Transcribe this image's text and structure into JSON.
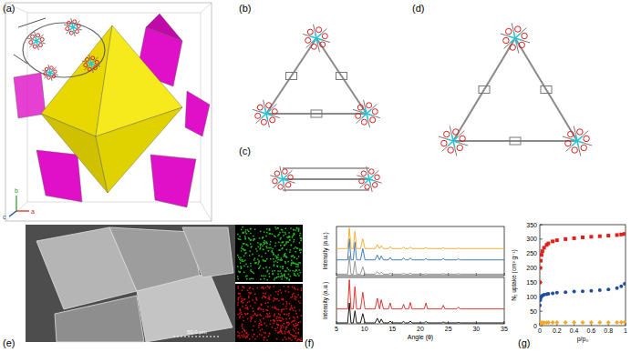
{
  "panel_labels": {
    "a": "(a)",
    "b": "(b)",
    "c": "(c)",
    "d": "(d)",
    "e": "(e)",
    "f": "(f)",
    "g": "(g)"
  },
  "axes_triad": {
    "b": "b",
    "c": "c",
    "a": "a"
  },
  "scale_bar": "50.0 µm",
  "chart_data": [
    {
      "type": "line",
      "ylabel": "Intensity (a.u.)",
      "x": [
        5,
        6.6,
        7.0,
        7.3,
        7.6,
        8.0,
        8.3,
        8.6,
        9.3,
        9.7,
        10.1,
        11.5,
        11.9,
        12.3,
        12.7,
        13.0,
        13.4,
        14.3,
        14.6,
        14.9,
        16.7,
        17.0,
        17.3,
        17.9,
        18.2,
        18.5,
        20.7,
        21.0,
        21.3,
        23.8,
        24.1,
        24.4,
        26.5,
        26.8,
        27.1,
        35
      ],
      "xlim": [
        5,
        35
      ],
      "xticks": [
        5,
        10,
        15,
        20,
        25,
        30,
        35
      ],
      "ylim": [
        0,
        100
      ],
      "tick_labels": false,
      "series": [
        {
          "color": "#8c8c8c",
          "values": [
            3,
            3,
            3,
            40,
            3,
            3,
            30,
            3,
            3,
            18,
            3,
            3,
            3,
            8,
            3,
            7,
            3,
            3,
            5,
            3,
            3,
            5,
            3,
            3,
            5,
            3,
            3,
            4,
            3,
            3,
            4,
            3,
            3,
            4,
            3,
            3
          ]
        },
        {
          "color": "#2f6db5",
          "values": [
            32,
            32,
            32,
            75,
            32,
            32,
            68,
            32,
            32,
            55,
            32,
            32,
            32,
            42,
            32,
            40,
            32,
            32,
            37,
            32,
            32,
            36,
            32,
            32,
            36,
            32,
            32,
            35,
            32,
            32,
            35,
            32,
            32,
            34,
            32,
            32
          ]
        },
        {
          "color": "#f5a623",
          "values": [
            55,
            55,
            55,
            97,
            55,
            55,
            90,
            55,
            55,
            75,
            55,
            55,
            55,
            63,
            55,
            61,
            55,
            55,
            59,
            55,
            55,
            58,
            55,
            55,
            58,
            55,
            55,
            57,
            55,
            55,
            57,
            55,
            55,
            56,
            55,
            55
          ]
        }
      ]
    },
    {
      "type": "line",
      "ylabel": "Intensity (a.u.)",
      "xlabel": "Angle (θ)",
      "x": [
        5,
        6.6,
        7.0,
        7.3,
        7.6,
        8.0,
        8.3,
        8.6,
        9.3,
        9.7,
        10.1,
        11.5,
        11.9,
        12.3,
        12.7,
        13.0,
        13.4,
        14.3,
        14.6,
        14.9,
        16.7,
        17.0,
        17.3,
        17.9,
        18.2,
        18.5,
        20.7,
        21.0,
        21.3,
        23.8,
        24.1,
        24.4,
        26.5,
        26.8,
        27.1,
        35
      ],
      "xlim": [
        5,
        35
      ],
      "xticks": [
        5,
        10,
        15,
        20,
        25,
        30,
        35
      ],
      "ylim": [
        0,
        100
      ],
      "tick_labels": "x",
      "series": [
        {
          "color": "#000000",
          "values": [
            2,
            2,
            2,
            45,
            2,
            2,
            28,
            2,
            2,
            22,
            2,
            2,
            2,
            12,
            2,
            10,
            2,
            2,
            6,
            2,
            2,
            5,
            2,
            2,
            6,
            2,
            2,
            5,
            2,
            2,
            4,
            2,
            2,
            3,
            2,
            2
          ]
        },
        {
          "color": "#e0201b",
          "values": [
            32,
            32,
            32,
            95,
            32,
            32,
            80,
            32,
            32,
            68,
            32,
            32,
            32,
            55,
            32,
            52,
            32,
            32,
            45,
            32,
            32,
            42,
            32,
            32,
            46,
            32,
            32,
            45,
            32,
            32,
            40,
            32,
            32,
            36,
            32,
            32
          ]
        }
      ]
    },
    {
      "type": "scatter",
      "xlabel": "p/p₀",
      "ylabel": "N₂ uptake (cm³ g⁻¹)",
      "x": [
        0.001,
        0.005,
        0.01,
        0.02,
        0.03,
        0.05,
        0.08,
        0.1,
        0.15,
        0.2,
        0.3,
        0.4,
        0.5,
        0.6,
        0.7,
        0.8,
        0.9,
        0.95,
        0.99
      ],
      "xlim": [
        0,
        1
      ],
      "xticks": [
        0,
        0.2,
        0.4,
        0.6,
        0.8,
        1
      ],
      "ylim": [
        0,
        350
      ],
      "yticks": [
        0,
        50,
        100,
        150,
        200,
        250,
        300,
        350
      ],
      "series": [
        {
          "color": "#e0201b",
          "marker": "square",
          "values": [
            150,
            200,
            225,
            245,
            258,
            270,
            280,
            285,
            292,
            296,
            300,
            303,
            306,
            308,
            310,
            312,
            314,
            316,
            318
          ]
        },
        {
          "color": "#1f4e9c",
          "marker": "circle",
          "values": [
            70,
            88,
            95,
            101,
            104,
            107,
            109,
            110,
            112,
            114,
            116,
            118,
            119,
            121,
            123,
            125,
            130,
            136,
            145
          ]
        },
        {
          "color": "#f5a623",
          "marker": "diamond",
          "values": [
            5,
            8,
            9,
            10,
            10,
            10,
            10,
            11,
            11,
            11,
            11,
            11,
            11,
            11,
            11,
            11,
            11,
            12,
            12
          ]
        }
      ]
    }
  ]
}
